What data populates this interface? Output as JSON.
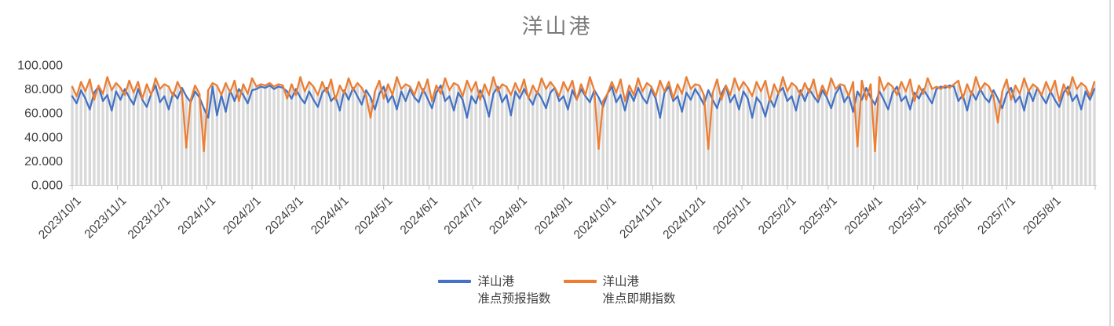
{
  "title": "洋山港",
  "colors": {
    "blue": "#4472C4",
    "orange": "#ED7D31",
    "bars": "#D9D9D9",
    "axis_line": "#C9C9C9",
    "tick": "#BFBFBF",
    "axis_text": "#3F3F3F",
    "title_text": "#7A7A7A"
  },
  "legend": [
    {
      "name_line1": "洋山港",
      "name_line2": "准点预报指数"
    },
    {
      "name_line1": "洋山港",
      "name_line2": "准点即期指数"
    }
  ],
  "chart_data": {
    "type": "line",
    "title": "洋山港",
    "xlabel": "",
    "ylabel": "",
    "ylim": [
      0,
      100
    ],
    "grid": false,
    "legend_position": "bottom",
    "drop_lines": true,
    "x_start_date": "2023/10/1",
    "x_step_days": 3,
    "x_tick_labels": [
      "2023/10/1",
      "2023/11/1",
      "2023/12/1",
      "2024/1/1",
      "2024/2/1",
      "2024/3/1",
      "2024/4/1",
      "2024/5/1",
      "2024/6/1",
      "2024/7/1",
      "2024/8/1",
      "2024/9/1",
      "2024/10/1",
      "2024/11/1",
      "2024/12/1",
      "2025/1/1",
      "2025/2/1",
      "2025/3/1",
      "2025/4/1",
      "2025/5/1",
      "2025/6/1",
      "2025/7/1",
      "2025/8/1"
    ],
    "y_ticks": [
      "0.000",
      "20.000",
      "40.000",
      "60.000",
      "80.000",
      "100.000"
    ],
    "series": [
      {
        "name": "洋山港准点预报指数",
        "color": "#4472C4",
        "values": [
          74,
          68,
          79,
          72,
          63,
          77,
          82,
          70,
          75,
          62,
          78,
          71,
          80,
          73,
          67,
          80,
          71,
          65,
          76,
          83,
          69,
          74,
          63,
          77,
          72,
          81,
          74,
          69,
          78,
          73,
          64,
          56,
          82,
          58,
          75,
          61,
          79,
          70,
          80,
          75,
          68,
          79,
          80,
          82,
          81,
          83,
          80,
          82,
          81,
          78,
          72,
          80,
          73,
          68,
          78,
          71,
          65,
          77,
          81,
          70,
          74,
          62,
          79,
          71,
          81,
          74,
          67,
          79,
          73,
          63,
          76,
          82,
          69,
          75,
          63,
          78,
          70,
          80,
          73,
          69,
          80,
          72,
          64,
          77,
          83,
          70,
          74,
          62,
          77,
          71,
          56,
          74,
          68,
          79,
          71,
          57,
          76,
          82,
          69,
          75,
          58,
          78,
          72,
          80,
          73,
          67,
          78,
          72,
          64,
          77,
          81,
          70,
          74,
          63,
          79,
          71,
          80,
          74,
          69,
          79,
          73,
          65,
          76,
          82,
          69,
          75,
          62,
          78,
          70,
          81,
          73,
          68,
          80,
          72,
          56,
          77,
          82,
          70,
          74,
          61,
          77,
          71,
          80,
          74,
          67,
          79,
          71,
          64,
          76,
          83,
          69,
          75,
          63,
          78,
          72,
          56,
          73,
          68,
          57,
          72,
          65,
          77,
          81,
          70,
          74,
          62,
          79,
          70,
          80,
          74,
          69,
          79,
          73,
          64,
          76,
          82,
          69,
          75,
          61,
          78,
          71,
          81,
          73,
          67,
          78,
          71,
          63,
          77,
          82,
          70,
          74,
          63,
          77,
          72,
          80,
          74,
          68,
          80,
          82,
          81,
          83,
          82,
          70,
          75,
          62,
          78,
          71,
          80,
          73,
          69,
          79,
          72,
          64,
          76,
          81,
          69,
          74,
          62,
          79,
          70,
          81,
          74,
          68,
          78,
          71,
          65,
          77,
          82,
          70,
          75,
          63,
          78,
          71,
          80
        ]
      },
      {
        "name": "洋山港准点即期指数",
        "color": "#ED7D31",
        "values": [
          82,
          74,
          86,
          78,
          88,
          71,
          83,
          76,
          90,
          79,
          85,
          81,
          75,
          87,
          77,
          86,
          72,
          84,
          75,
          89,
          80,
          84,
          82,
          74,
          86,
          78,
          31,
          71,
          83,
          76,
          28,
          79,
          85,
          83,
          75,
          85,
          77,
          87,
          70,
          84,
          76,
          89,
          82,
          84,
          83,
          85,
          82,
          84,
          83,
          72,
          84,
          75,
          90,
          78,
          86,
          82,
          75,
          86,
          77,
          88,
          71,
          83,
          76,
          89,
          79,
          85,
          81,
          74,
          56,
          78,
          87,
          72,
          84,
          75,
          90,
          80,
          84,
          82,
          75,
          86,
          77,
          88,
          70,
          83,
          76,
          89,
          79,
          85,
          83,
          74,
          87,
          78,
          86,
          71,
          84,
          75,
          90,
          78,
          84,
          82,
          75,
          85,
          77,
          88,
          72,
          83,
          76,
          89,
          80,
          86,
          81,
          74,
          86,
          78,
          87,
          71,
          84,
          75,
          90,
          79,
          30,
          70,
          76,
          86,
          77,
          88,
          70,
          83,
          75,
          89,
          78,
          85,
          82,
          74,
          87,
          78,
          86,
          72,
          84,
          76,
          90,
          80,
          84,
          83,
          75,
          30,
          77,
          88,
          71,
          83,
          75,
          89,
          79,
          86,
          81,
          74,
          86,
          78,
          87,
          70,
          84,
          76,
          90,
          78,
          85,
          82,
          75,
          85,
          77,
          88,
          72,
          83,
          75,
          89,
          80,
          84,
          83,
          74,
          86,
          32,
          87,
          71,
          84,
          28,
          90,
          79,
          85,
          82,
          75,
          86,
          78,
          88,
          70,
          83,
          76,
          89,
          80,
          82,
          80,
          83,
          81,
          84,
          87,
          72,
          84,
          75,
          90,
          79,
          85,
          82,
          74,
          52,
          78,
          88,
          71,
          83,
          76,
          89,
          78,
          84,
          81,
          75,
          86,
          77,
          87,
          70,
          84,
          75,
          90,
          80,
          85,
          82,
          74,
          86
        ]
      }
    ]
  }
}
